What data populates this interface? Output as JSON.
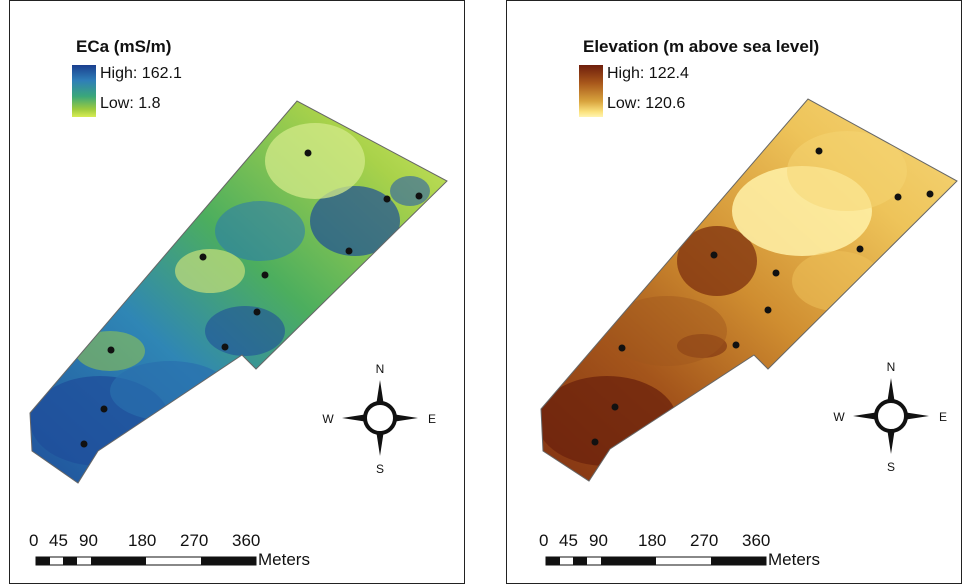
{
  "panels": [
    {
      "legend": {
        "title": "ECa (mS/m)",
        "high": "High: 162.1",
        "low": "Low: 1.8"
      },
      "scale": {
        "ticks": [
          "0",
          "45",
          "90",
          "180",
          "270",
          "360"
        ],
        "unit": "Meters"
      },
      "compass": {
        "n": "N",
        "s": "S",
        "e": "E",
        "w": "W"
      }
    },
    {
      "legend": {
        "title": "Elevation (m above sea level)",
        "high": "High: 122.4",
        "low": "Low: 120.6"
      },
      "scale": {
        "ticks": [
          "0",
          "45",
          "90",
          "180",
          "270",
          "360"
        ],
        "unit": "Meters"
      },
      "compass": {
        "n": "N",
        "s": "S",
        "e": "E",
        "w": "W"
      }
    }
  ]
}
